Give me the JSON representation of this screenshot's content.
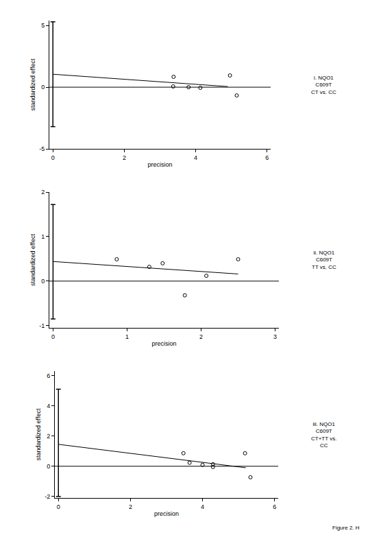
{
  "caption": "Figure 2. H",
  "chart_data": [
    {
      "type": "scatter",
      "title": [
        "i. NQO1",
        "C609T",
        "CT vs. CC"
      ],
      "x_label": "precision",
      "y_label": "standardized effect",
      "x": [
        3.38,
        3.37,
        3.8,
        4.13,
        4.96,
        5.15
      ],
      "values": [
        0.84,
        0.06,
        0.0,
        -0.05,
        0.95,
        -0.67
      ],
      "fit": {
        "x": [
          0,
          4.9
        ],
        "values": [
          1.05,
          0.05
        ]
      },
      "intercept_ci": [
        -3.2,
        5.3
      ],
      "reference_line": 0,
      "xlim": [
        -0.1,
        6.1
      ],
      "xticks": [
        0,
        2,
        4,
        6
      ],
      "ylim": [
        -5,
        5.4
      ],
      "yticks": [
        -5,
        0,
        5
      ],
      "grid": false,
      "marker": "circle-open",
      "color": "#000000"
    },
    {
      "type": "scatter",
      "title": [
        "ii. NQO1",
        "C609T",
        "TT vs. CC"
      ],
      "x_label": "precision",
      "y_label": "standardized effect",
      "x": [
        0.86,
        1.3,
        1.48,
        1.78,
        2.07,
        2.5
      ],
      "values": [
        0.49,
        0.32,
        0.4,
        -0.32,
        0.12,
        0.49
      ],
      "fit": {
        "x": [
          0,
          2.5
        ],
        "values": [
          0.44,
          0.16
        ]
      },
      "intercept_ci": [
        -0.85,
        1.72
      ],
      "reference_line": 0,
      "xlim": [
        -0.05,
        3.05
      ],
      "xticks": [
        0,
        1,
        2,
        3
      ],
      "ylim": [
        -1.05,
        2
      ],
      "yticks": [
        -1,
        0,
        1,
        2
      ],
      "grid": false,
      "marker": "circle-open",
      "color": "#000000"
    },
    {
      "type": "scatter",
      "title": [
        "iii. NQO1",
        "C609T",
        "CT+TT vs.",
        "CC"
      ],
      "x_label": "precision",
      "y_label": "standardized effect",
      "x": [
        3.47,
        3.64,
        4.0,
        4.29,
        4.29,
        5.18,
        5.33
      ],
      "values": [
        0.86,
        0.23,
        0.09,
        -0.05,
        0.13,
        0.86,
        -0.73
      ],
      "fit": {
        "x": [
          0,
          5.2
        ],
        "values": [
          1.45,
          -0.1
        ]
      },
      "intercept_ci": [
        -2.0,
        5.1
      ],
      "reference_line": 0,
      "xlim": [
        -0.1,
        6.1
      ],
      "xticks": [
        0,
        2,
        4,
        6
      ],
      "ylim": [
        -2.1,
        6.3
      ],
      "yticks": [
        -2,
        0,
        2,
        4,
        6
      ],
      "grid": false,
      "marker": "circle-open",
      "color": "#000000"
    }
  ]
}
